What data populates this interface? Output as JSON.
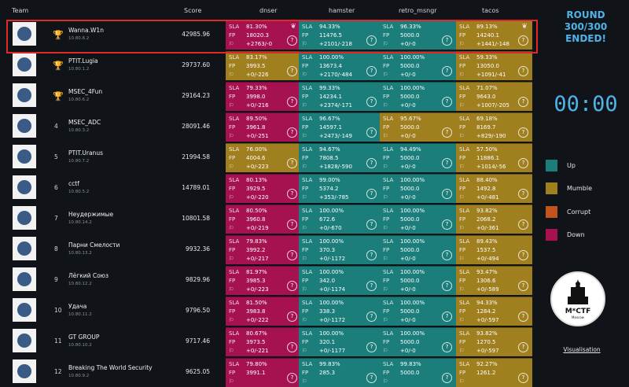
{
  "headers": {
    "team": "Team",
    "score": "Score",
    "services": [
      "dnser",
      "hamster",
      "retro_msngr",
      "tacos"
    ]
  },
  "labels": {
    "sla": "SLA",
    "fp": "FP"
  },
  "colors": {
    "up": "#1b7e7b",
    "mumble": "#a07f1f",
    "corrupt": "#c0541c",
    "down": "#a6124f",
    "accent": "#4fb3e8",
    "highlight": "#e02a2a"
  },
  "rows": [
    {
      "rank": "",
      "trophy": "gold",
      "name": "Wanna.W1n",
      "ip": "10.80.8.2",
      "score": "42985.96",
      "cells": [
        {
          "status": "down",
          "sla": "81.30%",
          "fp": "18020.3",
          "delta": "+2763/-0"
        },
        {
          "status": "up",
          "sla": "94.33%",
          "fp": "11476.5",
          "delta": "+2101/-218"
        },
        {
          "status": "up",
          "sla": "96.33%",
          "fp": "5000.0",
          "delta": "+0/-0"
        },
        {
          "status": "mumble",
          "sla": "89.13%",
          "fp": "14240.1",
          "delta": "+1441/-148"
        }
      ]
    },
    {
      "rank": "",
      "trophy": "silver",
      "name": "PTIT.Lugia",
      "ip": "10.80.1.2",
      "score": "29737.60",
      "cells": [
        {
          "status": "mumble",
          "sla": "83.17%",
          "fp": "3993.5",
          "delta": "+0/-226"
        },
        {
          "status": "up",
          "sla": "100.00%",
          "fp": "13673.4",
          "delta": "+2170/-484"
        },
        {
          "status": "up",
          "sla": "100.00%",
          "fp": "5000.0",
          "delta": "+0/-0"
        },
        {
          "status": "mumble",
          "sla": "59.33%",
          "fp": "13050.0",
          "delta": "+1091/-41"
        }
      ]
    },
    {
      "rank": "",
      "trophy": "bronze",
      "name": "MSEC_4Fun",
      "ip": "10.80.6.2",
      "score": "29164.23",
      "cells": [
        {
          "status": "down",
          "sla": "79.33%",
          "fp": "3998.0",
          "delta": "+0/-216"
        },
        {
          "status": "up",
          "sla": "99.33%",
          "fp": "14234.1",
          "delta": "+2374/-171"
        },
        {
          "status": "up",
          "sla": "100.00%",
          "fp": "5000.0",
          "delta": "+0/-0"
        },
        {
          "status": "mumble",
          "sla": "71.07%",
          "fp": "9643.0",
          "delta": "+1007/-205"
        }
      ]
    },
    {
      "rank": "4",
      "trophy": "",
      "name": "MSEC_ADC",
      "ip": "10.80.3.2",
      "score": "28091.46",
      "cells": [
        {
          "status": "down",
          "sla": "89.50%",
          "fp": "3961.8",
          "delta": "+0/-251"
        },
        {
          "status": "up",
          "sla": "96.67%",
          "fp": "14597.1",
          "delta": "+2473/-149"
        },
        {
          "status": "mumble",
          "sla": "95.67%",
          "fp": "5000.0",
          "delta": "+0/-0"
        },
        {
          "status": "mumble",
          "sla": "69.18%",
          "fp": "8169.7",
          "delta": "+829/-190"
        }
      ]
    },
    {
      "rank": "5",
      "trophy": "",
      "name": "PTIT.Uranus",
      "ip": "10.80.7.2",
      "score": "21994.58",
      "cells": [
        {
          "status": "mumble",
          "sla": "76.00%",
          "fp": "4004.6",
          "delta": "+0/-223"
        },
        {
          "status": "up",
          "sla": "94.67%",
          "fp": "7808.5",
          "delta": "+1828/-590"
        },
        {
          "status": "up",
          "sla": "94.49%",
          "fp": "5000.0",
          "delta": "+0/-0"
        },
        {
          "status": "mumble",
          "sla": "57.50%",
          "fp": "11886.1",
          "delta": "+1014/-56"
        }
      ]
    },
    {
      "rank": "6",
      "trophy": "",
      "name": "cctf",
      "ip": "10.80.5.2",
      "score": "14789.01",
      "cells": [
        {
          "status": "down",
          "sla": "80.13%",
          "fp": "3929.5",
          "delta": "+0/-220"
        },
        {
          "status": "up",
          "sla": "99.00%",
          "fp": "5374.2",
          "delta": "+353/-785"
        },
        {
          "status": "up",
          "sla": "100.00%",
          "fp": "5000.0",
          "delta": "+0/-0"
        },
        {
          "status": "mumble",
          "sla": "88.40%",
          "fp": "1492.8",
          "delta": "+0/-481"
        }
      ]
    },
    {
      "rank": "7",
      "trophy": "",
      "name": "Неудержимые",
      "ip": "10.80.14.2",
      "score": "10801.58",
      "cells": [
        {
          "status": "down",
          "sla": "80.50%",
          "fp": "3960.8",
          "delta": "+0/-219"
        },
        {
          "status": "up",
          "sla": "100.00%",
          "fp": "672.6",
          "delta": "+0/-670"
        },
        {
          "status": "up",
          "sla": "100.00%",
          "fp": "5000.0",
          "delta": "+0/-0"
        },
        {
          "status": "mumble",
          "sla": "93.82%",
          "fp": "2068.2",
          "delta": "+0/-361"
        }
      ]
    },
    {
      "rank": "8",
      "trophy": "",
      "name": "Парни Смелости",
      "ip": "10.80.13.2",
      "score": "9932.36",
      "cells": [
        {
          "status": "down",
          "sla": "79.83%",
          "fp": "3992.2",
          "delta": "+0/-217"
        },
        {
          "status": "up",
          "sla": "100.00%",
          "fp": "370.3",
          "delta": "+0/-1172"
        },
        {
          "status": "up",
          "sla": "100.00%",
          "fp": "5000.0",
          "delta": "+0/-0"
        },
        {
          "status": "mumble",
          "sla": "89.43%",
          "fp": "1537.5",
          "delta": "+0/-494"
        }
      ]
    },
    {
      "rank": "9",
      "trophy": "",
      "name": "Лёгкий Союз",
      "ip": "10.80.12.2",
      "score": "9829.96",
      "cells": [
        {
          "status": "down",
          "sla": "81.97%",
          "fp": "3985.3",
          "delta": "+0/-223"
        },
        {
          "status": "up",
          "sla": "100.00%",
          "fp": "342.0",
          "delta": "+0/-1174"
        },
        {
          "status": "up",
          "sla": "100.00%",
          "fp": "5000.0",
          "delta": "+0/-0"
        },
        {
          "status": "mumble",
          "sla": "93.47%",
          "fp": "1306.6",
          "delta": "+0/-589"
        }
      ]
    },
    {
      "rank": "10",
      "trophy": "",
      "name": "Удача",
      "ip": "10.80.11.2",
      "score": "9796.50",
      "cells": [
        {
          "status": "down",
          "sla": "81.50%",
          "fp": "3983.8",
          "delta": "+0/-222"
        },
        {
          "status": "up",
          "sla": "100.00%",
          "fp": "338.3",
          "delta": "+0/-1172"
        },
        {
          "status": "up",
          "sla": "100.00%",
          "fp": "5000.0",
          "delta": "+0/-0"
        },
        {
          "status": "mumble",
          "sla": "94.33%",
          "fp": "1284.2",
          "delta": "+0/-597"
        }
      ]
    },
    {
      "rank": "11",
      "trophy": "",
      "name": "GT GROUP",
      "ip": "10.80.10.2",
      "score": "9717.46",
      "cells": [
        {
          "status": "down",
          "sla": "80.67%",
          "fp": "3973.5",
          "delta": "+0/-221"
        },
        {
          "status": "up",
          "sla": "100.00%",
          "fp": "320.1",
          "delta": "+0/-1177"
        },
        {
          "status": "up",
          "sla": "100.00%",
          "fp": "5000.0",
          "delta": "+0/-0"
        },
        {
          "status": "mumble",
          "sla": "93.82%",
          "fp": "1270.5",
          "delta": "+0/-597"
        }
      ]
    },
    {
      "rank": "12",
      "trophy": "",
      "name": "Breaking The World Security",
      "ip": "10.80.9.2",
      "score": "9625.05",
      "cells": [
        {
          "status": "down",
          "sla": "79.80%",
          "fp": "3991.1",
          "delta": ""
        },
        {
          "status": "up",
          "sla": "99.83%",
          "fp": "285.3",
          "delta": ""
        },
        {
          "status": "up",
          "sla": "99.83%",
          "fp": "5000.0",
          "delta": ""
        },
        {
          "status": "mumble",
          "sla": "92.27%",
          "fp": "1261.2",
          "delta": ""
        }
      ]
    }
  ],
  "sidebar": {
    "round_line1": "ROUND",
    "round_line2": "300/300",
    "round_line3": "ENDED!",
    "timer": "00:00",
    "legend": [
      {
        "label": "Up",
        "color": "#1b7e7b"
      },
      {
        "label": "Mumble",
        "color": "#a07f1f"
      },
      {
        "label": "Corrupt",
        "color": "#c0541c"
      },
      {
        "label": "Down",
        "color": "#a6124f"
      }
    ],
    "emblem_text": "M*CTF",
    "emblem_sub": "Moscow",
    "vis_link": "Visualisation"
  }
}
